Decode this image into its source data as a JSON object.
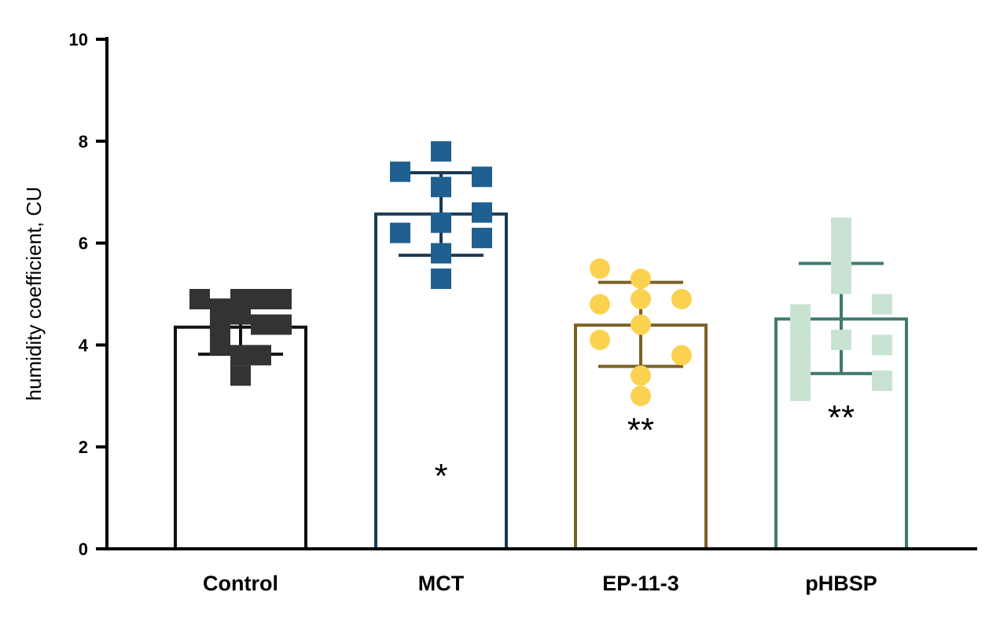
{
  "chart_data": {
    "type": "bar",
    "title": "",
    "xlabel": "",
    "ylabel": "humidity coefficient, CU",
    "ylim": [
      0,
      10
    ],
    "yticks": [
      0,
      2,
      4,
      6,
      8,
      10
    ],
    "ytick_labels": [
      "0",
      "2",
      "4",
      "6",
      "8",
      "10"
    ],
    "grid": false,
    "categories": [
      "Control",
      "MCT",
      "EP-11-3",
      "pHBSP"
    ],
    "values": [
      4.35,
      6.57,
      4.39,
      4.51
    ],
    "error_bars": [
      {
        "upper": 4.88,
        "lower": 3.82
      },
      {
        "upper": 7.38,
        "lower": 5.76
      },
      {
        "upper": 5.23,
        "lower": 3.58
      },
      {
        "upper": 5.6,
        "lower": 3.44
      }
    ],
    "bar_edge_colors": [
      "#111111",
      "#1b3a53",
      "#7a6224",
      "#3f7a6e"
    ],
    "point_colors": [
      "#333333",
      "#1f6090",
      "#fbd250",
      "#c9e3d2"
    ],
    "point_shapes": [
      "square",
      "square",
      "circle",
      "square"
    ],
    "points": [
      [
        {
          "x": -1,
          "y": 4.9
        },
        {
          "x": -0.5,
          "y": 4.7
        },
        {
          "x": -0.5,
          "y": 4.3
        },
        {
          "x": -0.5,
          "y": 4.0
        },
        {
          "x": 0,
          "y": 4.9
        },
        {
          "x": 0,
          "y": 4.6
        },
        {
          "x": 0,
          "y": 3.8
        },
        {
          "x": 0,
          "y": 3.4
        },
        {
          "x": 0.5,
          "y": 4.9
        },
        {
          "x": 0.5,
          "y": 4.4
        },
        {
          "x": 0.5,
          "y": 3.8
        },
        {
          "x": 1,
          "y": 4.9
        },
        {
          "x": 1,
          "y": 4.4
        }
      ],
      [
        {
          "x": -1,
          "y": 7.4
        },
        {
          "x": -1,
          "y": 6.2
        },
        {
          "x": 0,
          "y": 7.8
        },
        {
          "x": 0,
          "y": 7.1
        },
        {
          "x": 0,
          "y": 6.4
        },
        {
          "x": 0,
          "y": 5.8
        },
        {
          "x": 0,
          "y": 5.3
        },
        {
          "x": 1,
          "y": 7.3
        },
        {
          "x": 1,
          "y": 6.6
        },
        {
          "x": 1,
          "y": 6.1
        }
      ],
      [
        {
          "x": -1,
          "y": 5.5
        },
        {
          "x": -1,
          "y": 4.8
        },
        {
          "x": -1,
          "y": 4.1
        },
        {
          "x": 0,
          "y": 5.3
        },
        {
          "x": 0,
          "y": 4.9
        },
        {
          "x": 0,
          "y": 4.4
        },
        {
          "x": 0,
          "y": 3.4
        },
        {
          "x": 0,
          "y": 3.0
        },
        {
          "x": 1,
          "y": 4.9
        },
        {
          "x": 1,
          "y": 3.8
        }
      ],
      [
        {
          "x": -1,
          "y": 4.6
        },
        {
          "x": -1,
          "y": 4.3
        },
        {
          "x": -1,
          "y": 3.9
        },
        {
          "x": -1,
          "y": 3.5
        },
        {
          "x": -1,
          "y": 3.1
        },
        {
          "x": 0,
          "y": 6.3
        },
        {
          "x": 0,
          "y": 5.9
        },
        {
          "x": 0,
          "y": 5.5
        },
        {
          "x": 0,
          "y": 5.2
        },
        {
          "x": 0,
          "y": 4.1
        },
        {
          "x": 1,
          "y": 4.8
        },
        {
          "x": 1,
          "y": 4.0
        },
        {
          "x": 1,
          "y": 3.3
        }
      ]
    ],
    "significance": [
      {
        "category": "MCT",
        "label": "*",
        "y": 1.45
      },
      {
        "category": "EP-11-3",
        "label": "**",
        "y": 2.35
      },
      {
        "category": "pHBSP",
        "label": "**",
        "y": 2.6
      }
    ]
  }
}
